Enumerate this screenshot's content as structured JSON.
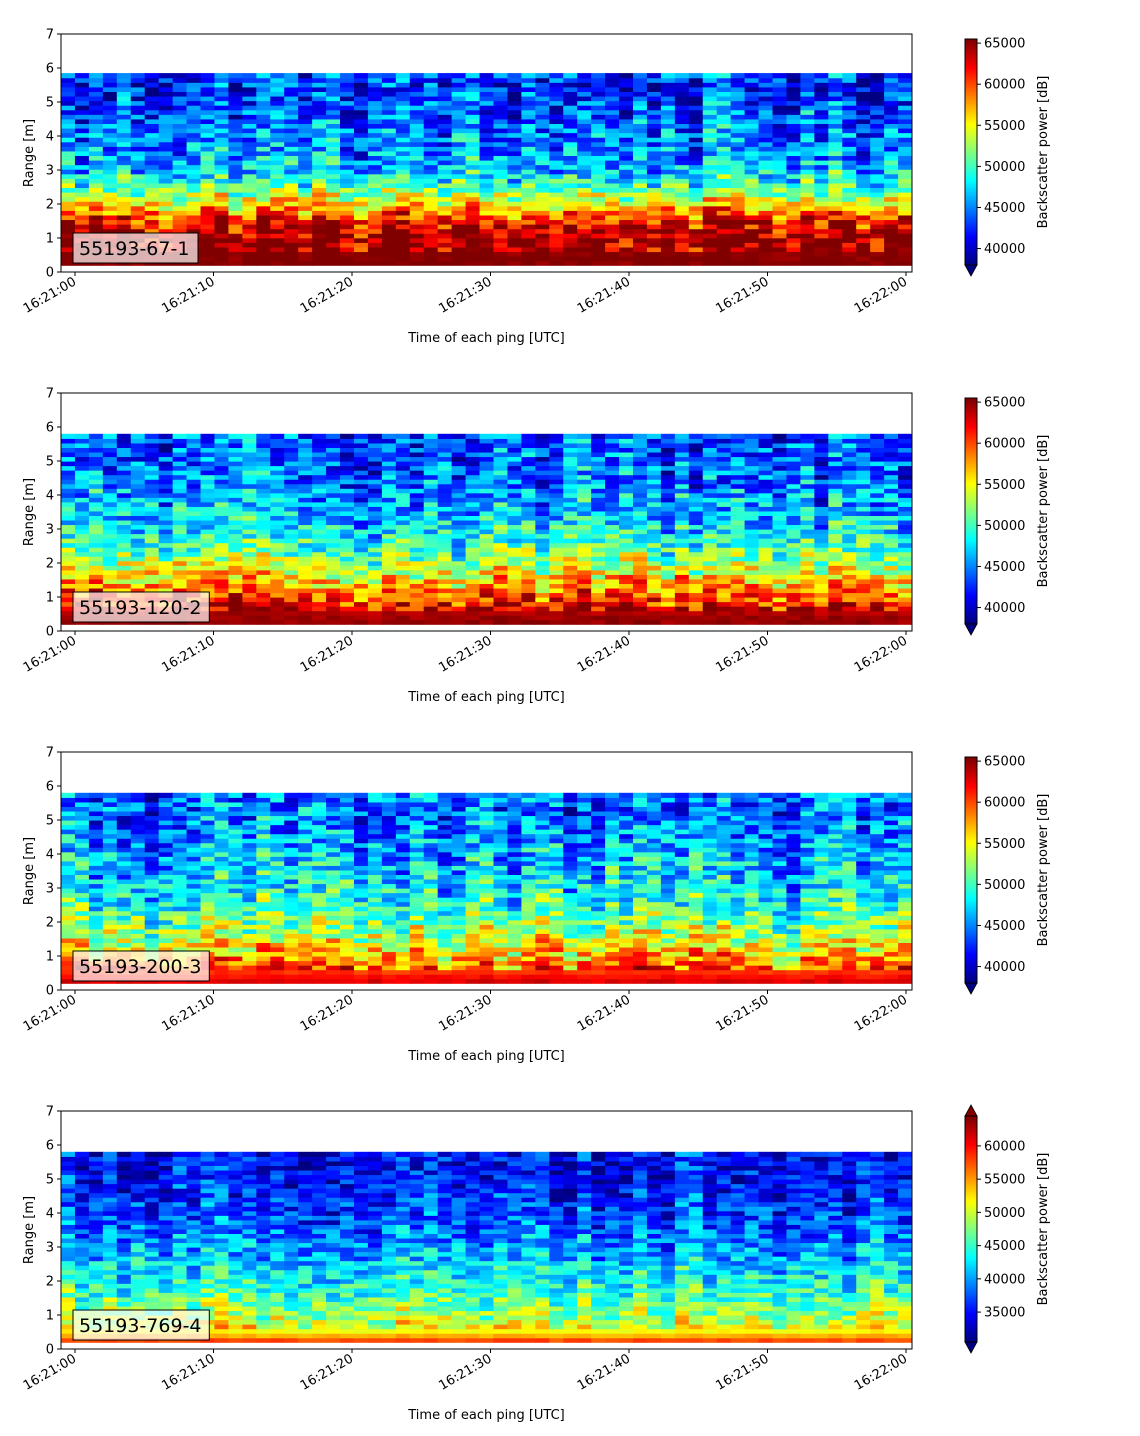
{
  "chart_data": [
    {
      "type": "heatmap",
      "label": "55193-67-1",
      "xlabel": "Time of each ping [UTC]",
      "ylabel": "Range [m]",
      "ylim": [
        0,
        7
      ],
      "yticks": [
        "0",
        "1",
        "2",
        "3",
        "4",
        "5",
        "6",
        "7"
      ],
      "xticks": [
        "16:21:00",
        "16:21:10",
        "16:21:20",
        "16:21:30",
        "16:21:40",
        "16:21:50",
        "16:22:00"
      ],
      "x_range": [
        "16:21:00",
        "16:22:00"
      ],
      "data_range_m": [
        0.2,
        5.85
      ],
      "colorbar_label": "Backscatter power [dB]",
      "colorbar_ticks": [
        "40000",
        "45000",
        "50000",
        "55000",
        "60000",
        "65000"
      ],
      "color_range": [
        38000,
        65500
      ],
      "colorbar_extend": "min",
      "colormap": "jet",
      "profile": [
        65500,
        65500,
        65000,
        62000,
        56000,
        51000,
        47000,
        45500,
        45000,
        44000,
        43000,
        42500,
        44500,
        45500
      ]
    },
    {
      "type": "heatmap",
      "label": "55193-120-2",
      "xlabel": "Time of each ping [UTC]",
      "ylabel": "Range [m]",
      "ylim": [
        0,
        7
      ],
      "yticks": [
        "0",
        "1",
        "2",
        "3",
        "4",
        "5",
        "6",
        "7"
      ],
      "xticks": [
        "16:21:00",
        "16:21:10",
        "16:21:20",
        "16:21:30",
        "16:21:40",
        "16:21:50",
        "16:22:00"
      ],
      "x_range": [
        "16:21:00",
        "16:22:00"
      ],
      "data_range_m": [
        0.2,
        5.8
      ],
      "colorbar_label": "Backscatter power [dB]",
      "colorbar_ticks": [
        "40000",
        "45000",
        "50000",
        "55000",
        "60000",
        "65000"
      ],
      "color_range": [
        38000,
        65500
      ],
      "colorbar_extend": "min",
      "colormap": "jet",
      "profile": [
        65500,
        64500,
        60000,
        56500,
        53000,
        50000,
        48000,
        46500,
        45500,
        44500,
        44000,
        43500,
        44500,
        45500
      ]
    },
    {
      "type": "heatmap",
      "label": "55193-200-3",
      "xlabel": "Time of each ping [UTC]",
      "ylabel": "Range [m]",
      "ylim": [
        0,
        7
      ],
      "yticks": [
        "0",
        "1",
        "2",
        "3",
        "4",
        "5",
        "6",
        "7"
      ],
      "xticks": [
        "16:21:00",
        "16:21:10",
        "16:21:20",
        "16:21:30",
        "16:21:40",
        "16:21:50",
        "16:22:00"
      ],
      "x_range": [
        "16:21:00",
        "16:22:00"
      ],
      "data_range_m": [
        0.2,
        5.8
      ],
      "colorbar_label": "Backscatter power [dB]",
      "colorbar_ticks": [
        "40000",
        "45000",
        "50000",
        "55000",
        "60000",
        "65000"
      ],
      "color_range": [
        38000,
        65500
      ],
      "colorbar_extend": "min",
      "colormap": "jet",
      "profile": [
        65000,
        61000,
        57000,
        54000,
        51500,
        49500,
        48000,
        47000,
        46000,
        45000,
        44500,
        44000,
        44500,
        45000
      ]
    },
    {
      "type": "heatmap",
      "label": "55193-769-4",
      "xlabel": "Time of each ping [UTC]",
      "ylabel": "Range [m]",
      "ylim": [
        0,
        7
      ],
      "yticks": [
        "0",
        "1",
        "2",
        "3",
        "4",
        "5",
        "6",
        "7"
      ],
      "xticks": [
        "16:21:00",
        "16:21:10",
        "16:21:20",
        "16:21:30",
        "16:21:40",
        "16:21:50",
        "16:22:00"
      ],
      "x_range": [
        "16:21:00",
        "16:22:00"
      ],
      "data_range_m": [
        0.2,
        5.8
      ],
      "colorbar_label": "Backscatter power [dB]",
      "colorbar_ticks": [
        "35000",
        "40000",
        "45000",
        "50000",
        "55000",
        "60000"
      ],
      "color_range": [
        30500,
        64500
      ],
      "colorbar_extend": "both",
      "colormap": "jet",
      "profile": [
        64500,
        52000,
        49000,
        46500,
        44000,
        42000,
        40000,
        38500,
        37000,
        36000,
        35000,
        34500,
        35000,
        37000
      ]
    }
  ]
}
